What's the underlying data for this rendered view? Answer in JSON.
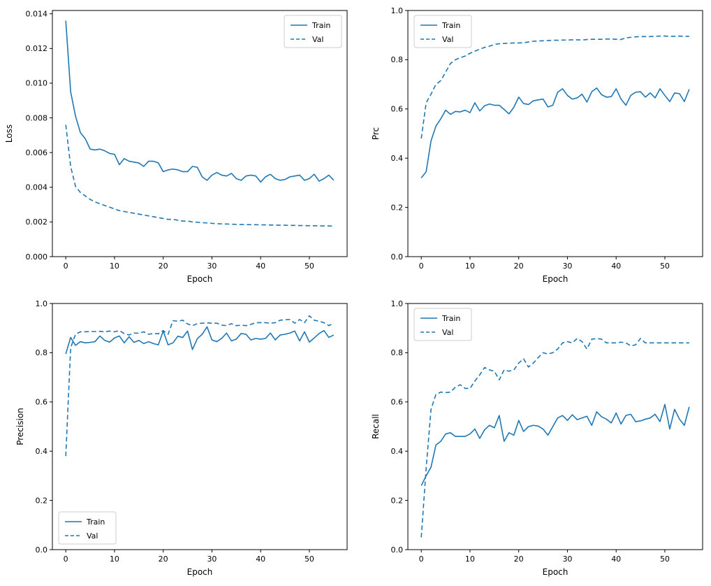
{
  "figure": {
    "background": "#ffffff",
    "line_color": "#1f77b4",
    "spine_color": "#000000",
    "legend_border_color": "#cccccc"
  },
  "chart_data": [
    {
      "type": "line",
      "title": "",
      "xlabel": "Epoch",
      "ylabel": "Loss",
      "xlim": [
        -2.75,
        57.75
      ],
      "ylim": [
        0,
        0.01419
      ],
      "grid": false,
      "xticks": [
        0,
        10,
        20,
        30,
        40,
        50
      ],
      "xtick_labels": [
        "0",
        "10",
        "20",
        "30",
        "40",
        "50"
      ],
      "yticks": [
        0,
        0.002,
        0.004,
        0.006,
        0.008,
        0.01,
        0.012,
        0.014
      ],
      "ytick_labels": [
        "0.000",
        "0.002",
        "0.004",
        "0.006",
        "0.008",
        "0.010",
        "0.012",
        "0.014"
      ],
      "legend_loc": "upper right",
      "x": [
        0,
        1,
        2,
        3,
        4,
        5,
        6,
        7,
        8,
        9,
        10,
        11,
        12,
        13,
        14,
        15,
        16,
        17,
        18,
        19,
        20,
        21,
        22,
        23,
        24,
        25,
        26,
        27,
        28,
        29,
        30,
        31,
        32,
        33,
        34,
        35,
        36,
        37,
        38,
        39,
        40,
        41,
        42,
        43,
        44,
        45,
        46,
        47,
        48,
        49,
        50,
        51,
        52,
        53,
        54,
        55
      ],
      "series": [
        {
          "name": "Train",
          "style": "solid",
          "values": [
            0.0136,
            0.0095,
            0.0081,
            0.00715,
            0.0068,
            0.0062,
            0.00615,
            0.0062,
            0.0061,
            0.00595,
            0.0059,
            0.0053,
            0.00565,
            0.0055,
            0.00545,
            0.0054,
            0.0052,
            0.0055,
            0.0055,
            0.0054,
            0.0049,
            0.005,
            0.00505,
            0.005,
            0.0049,
            0.0049,
            0.0052,
            0.00515,
            0.0046,
            0.0044,
            0.0047,
            0.00485,
            0.0047,
            0.00465,
            0.0048,
            0.0045,
            0.0044,
            0.00465,
            0.0047,
            0.00465,
            0.0043,
            0.0046,
            0.00475,
            0.0045,
            0.0044,
            0.00445,
            0.0046,
            0.00465,
            0.0047,
            0.0044,
            0.0045,
            0.00475,
            0.00435,
            0.0045,
            0.0047,
            0.0044
          ]
        },
        {
          "name": "Val",
          "style": "dashed",
          "values": [
            0.0076,
            0.0052,
            0.00405,
            0.0037,
            0.0035,
            0.0033,
            0.00315,
            0.00305,
            0.00295,
            0.00285,
            0.00275,
            0.00265,
            0.0026,
            0.00255,
            0.0025,
            0.00245,
            0.0024,
            0.00235,
            0.0023,
            0.00225,
            0.0022,
            0.00215,
            0.00215,
            0.0021,
            0.00205,
            0.00205,
            0.002,
            0.00198,
            0.00196,
            0.00194,
            0.00192,
            0.0019,
            0.00189,
            0.00188,
            0.00187,
            0.00186,
            0.00185,
            0.00185,
            0.00184,
            0.00184,
            0.00183,
            0.00183,
            0.00182,
            0.00182,
            0.00181,
            0.00181,
            0.0018,
            0.0018,
            0.00179,
            0.00179,
            0.00178,
            0.00178,
            0.00177,
            0.00177,
            0.00177,
            0.00176
          ]
        }
      ]
    },
    {
      "type": "line",
      "title": "",
      "xlabel": "Epoch",
      "ylabel": "Prc",
      "xlim": [
        -2.75,
        57.75
      ],
      "ylim": [
        0,
        1
      ],
      "grid": false,
      "xticks": [
        0,
        10,
        20,
        30,
        40,
        50
      ],
      "xtick_labels": [
        "0",
        "10",
        "20",
        "30",
        "40",
        "50"
      ],
      "yticks": [
        0,
        0.2,
        0.4,
        0.6,
        0.8,
        1.0
      ],
      "ytick_labels": [
        "0.0",
        "0.2",
        "0.4",
        "0.6",
        "0.8",
        "1.0"
      ],
      "legend_loc": "upper left",
      "x": [
        0,
        1,
        2,
        3,
        4,
        5,
        6,
        7,
        8,
        9,
        10,
        11,
        12,
        13,
        14,
        15,
        16,
        17,
        18,
        19,
        20,
        21,
        22,
        23,
        24,
        25,
        26,
        27,
        28,
        29,
        30,
        31,
        32,
        33,
        34,
        35,
        36,
        37,
        38,
        39,
        40,
        41,
        42,
        43,
        44,
        45,
        46,
        47,
        48,
        49,
        50,
        51,
        52,
        53,
        54,
        55
      ],
      "series": [
        {
          "name": "Train",
          "style": "solid",
          "values": [
            0.32,
            0.345,
            0.47,
            0.53,
            0.56,
            0.595,
            0.578,
            0.59,
            0.588,
            0.595,
            0.585,
            0.625,
            0.592,
            0.613,
            0.62,
            0.615,
            0.615,
            0.598,
            0.58,
            0.607,
            0.648,
            0.622,
            0.618,
            0.633,
            0.637,
            0.64,
            0.608,
            0.615,
            0.668,
            0.682,
            0.655,
            0.64,
            0.645,
            0.66,
            0.628,
            0.67,
            0.685,
            0.658,
            0.648,
            0.65,
            0.682,
            0.64,
            0.615,
            0.655,
            0.668,
            0.67,
            0.648,
            0.665,
            0.645,
            0.682,
            0.655,
            0.63,
            0.665,
            0.662,
            0.63,
            0.68
          ]
        },
        {
          "name": "Val",
          "style": "dashed",
          "values": [
            0.48,
            0.625,
            0.66,
            0.7,
            0.715,
            0.75,
            0.785,
            0.8,
            0.808,
            0.815,
            0.826,
            0.835,
            0.843,
            0.85,
            0.855,
            0.862,
            0.865,
            0.866,
            0.867,
            0.868,
            0.868,
            0.869,
            0.872,
            0.875,
            0.876,
            0.877,
            0.878,
            0.879,
            0.879,
            0.88,
            0.88,
            0.881,
            0.881,
            0.88,
            0.882,
            0.883,
            0.883,
            0.883,
            0.884,
            0.884,
            0.883,
            0.882,
            0.889,
            0.891,
            0.893,
            0.894,
            0.894,
            0.894,
            0.895,
            0.896,
            0.896,
            0.895,
            0.895,
            0.896,
            0.895,
            0.895
          ]
        }
      ]
    },
    {
      "type": "line",
      "title": "",
      "xlabel": "Epoch",
      "ylabel": "Precision",
      "xlim": [
        -2.75,
        57.75
      ],
      "ylim": [
        0,
        1
      ],
      "grid": false,
      "xticks": [
        0,
        10,
        20,
        30,
        40,
        50
      ],
      "xtick_labels": [
        "0",
        "10",
        "20",
        "30",
        "40",
        "50"
      ],
      "yticks": [
        0,
        0.2,
        0.4,
        0.6,
        0.8,
        1.0
      ],
      "ytick_labels": [
        "0.0",
        "0.2",
        "0.4",
        "0.6",
        "0.8",
        "1.0"
      ],
      "legend_loc": "lower left",
      "x": [
        0,
        1,
        2,
        3,
        4,
        5,
        6,
        7,
        8,
        9,
        10,
        11,
        12,
        13,
        14,
        15,
        16,
        17,
        18,
        19,
        20,
        21,
        22,
        23,
        24,
        25,
        26,
        27,
        28,
        29,
        30,
        31,
        32,
        33,
        34,
        35,
        36,
        37,
        38,
        39,
        40,
        41,
        42,
        43,
        44,
        45,
        46,
        47,
        48,
        49,
        50,
        51,
        52,
        53,
        54,
        55
      ],
      "series": [
        {
          "name": "Train",
          "style": "solid",
          "values": [
            0.795,
            0.862,
            0.83,
            0.845,
            0.84,
            0.842,
            0.845,
            0.868,
            0.85,
            0.843,
            0.86,
            0.868,
            0.84,
            0.865,
            0.842,
            0.85,
            0.837,
            0.845,
            0.837,
            0.832,
            0.888,
            0.832,
            0.84,
            0.867,
            0.862,
            0.888,
            0.813,
            0.857,
            0.875,
            0.905,
            0.852,
            0.845,
            0.858,
            0.88,
            0.848,
            0.855,
            0.878,
            0.875,
            0.852,
            0.858,
            0.855,
            0.858,
            0.88,
            0.852,
            0.872,
            0.875,
            0.88,
            0.888,
            0.848,
            0.885,
            0.843,
            0.86,
            0.878,
            0.89,
            0.862,
            0.872
          ]
        },
        {
          "name": "Val",
          "style": "dashed",
          "values": [
            0.38,
            0.82,
            0.875,
            0.885,
            0.885,
            0.886,
            0.886,
            0.887,
            0.885,
            0.888,
            0.885,
            0.89,
            0.878,
            0.872,
            0.88,
            0.879,
            0.885,
            0.875,
            0.878,
            0.877,
            0.89,
            0.875,
            0.93,
            0.928,
            0.932,
            0.917,
            0.91,
            0.918,
            0.92,
            0.921,
            0.92,
            0.92,
            0.912,
            0.91,
            0.918,
            0.91,
            0.912,
            0.91,
            0.915,
            0.922,
            0.922,
            0.922,
            0.92,
            0.922,
            0.932,
            0.934,
            0.935,
            0.92,
            0.935,
            0.922,
            0.95,
            0.932,
            0.928,
            0.922,
            0.91,
            0.92
          ]
        }
      ]
    },
    {
      "type": "line",
      "title": "",
      "xlabel": "Epoch",
      "ylabel": "Recall",
      "xlim": [
        -2.75,
        57.75
      ],
      "ylim": [
        0,
        1
      ],
      "grid": false,
      "xticks": [
        0,
        10,
        20,
        30,
        40,
        50
      ],
      "xtick_labels": [
        "0",
        "10",
        "20",
        "30",
        "40",
        "50"
      ],
      "yticks": [
        0,
        0.2,
        0.4,
        0.6,
        0.8,
        1.0
      ],
      "ytick_labels": [
        "0.0",
        "0.2",
        "0.4",
        "0.6",
        "0.8",
        "1.0"
      ],
      "legend_loc": "upper left",
      "x": [
        0,
        1,
        2,
        3,
        4,
        5,
        6,
        7,
        8,
        9,
        10,
        11,
        12,
        13,
        14,
        15,
        16,
        17,
        18,
        19,
        20,
        21,
        22,
        23,
        24,
        25,
        26,
        27,
        28,
        29,
        30,
        31,
        32,
        33,
        34,
        35,
        36,
        37,
        38,
        39,
        40,
        41,
        42,
        43,
        44,
        45,
        46,
        47,
        48,
        49,
        50,
        51,
        52,
        53,
        54,
        55
      ],
      "series": [
        {
          "name": "Train",
          "style": "solid",
          "values": [
            0.26,
            0.3,
            0.335,
            0.425,
            0.44,
            0.47,
            0.475,
            0.46,
            0.46,
            0.46,
            0.47,
            0.49,
            0.452,
            0.487,
            0.505,
            0.495,
            0.545,
            0.44,
            0.475,
            0.465,
            0.525,
            0.48,
            0.5,
            0.505,
            0.502,
            0.49,
            0.465,
            0.5,
            0.535,
            0.545,
            0.525,
            0.548,
            0.528,
            0.535,
            0.542,
            0.505,
            0.56,
            0.54,
            0.53,
            0.515,
            0.555,
            0.51,
            0.545,
            0.55,
            0.52,
            0.523,
            0.53,
            0.535,
            0.55,
            0.52,
            0.59,
            0.49,
            0.57,
            0.53,
            0.505,
            0.58
          ]
        },
        {
          "name": "Val",
          "style": "dashed",
          "values": [
            0.05,
            0.33,
            0.57,
            0.63,
            0.64,
            0.638,
            0.64,
            0.66,
            0.67,
            0.655,
            0.655,
            0.685,
            0.71,
            0.74,
            0.73,
            0.725,
            0.69,
            0.73,
            0.725,
            0.73,
            0.758,
            0.775,
            0.742,
            0.758,
            0.78,
            0.8,
            0.795,
            0.8,
            0.815,
            0.84,
            0.845,
            0.84,
            0.858,
            0.845,
            0.815,
            0.855,
            0.858,
            0.855,
            0.84,
            0.84,
            0.84,
            0.843,
            0.84,
            0.828,
            0.832,
            0.858,
            0.84,
            0.84,
            0.84,
            0.84,
            0.84,
            0.84,
            0.84,
            0.84,
            0.84,
            0.84
          ]
        }
      ]
    }
  ]
}
